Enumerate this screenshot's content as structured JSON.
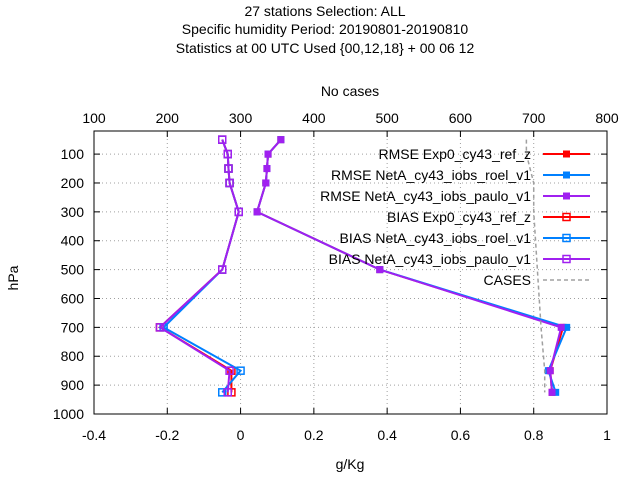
{
  "chart_data": {
    "type": "line",
    "title_lines": [
      "27 stations Selection: ALL",
      "Specific humidity  Period: 20190801-20190810",
      "Statistics at 00 UTC  Used {00,12,18} + 00 06 12"
    ],
    "xlabel": "g/Kg",
    "ylabel": "hPa",
    "x2label": "No cases",
    "xlim": [
      -0.4,
      1.0
    ],
    "ylim": [
      1000,
      20
    ],
    "x2lim": [
      100,
      800
    ],
    "xticks": [
      "-0.4",
      "-0.2",
      "0",
      "0.2",
      "0.4",
      "0.6",
      "0.8",
      "1"
    ],
    "xtick_values": [
      -0.4,
      -0.2,
      0,
      0.2,
      0.4,
      0.6,
      0.8,
      1.0
    ],
    "x2ticks": [
      "100",
      "200",
      "300",
      "400",
      "500",
      "600",
      "700",
      "800"
    ],
    "x2tick_values": [
      100,
      200,
      300,
      400,
      500,
      600,
      700,
      800
    ],
    "yticks": [
      "100",
      "200",
      "300",
      "400",
      "500",
      "600",
      "700",
      "800",
      "900",
      "1000"
    ],
    "ytick_values": [
      100,
      200,
      300,
      400,
      500,
      600,
      700,
      800,
      900,
      1000
    ],
    "grid": true,
    "legend_position": "top-right",
    "series": [
      {
        "name": "RMSE Exp0_cy43_ref_z",
        "color": "#ff0000",
        "marker": "filled-square",
        "points": [
          [
            0.11,
            50
          ],
          [
            0.075,
            100
          ],
          [
            0.072,
            150
          ],
          [
            0.069,
            200
          ],
          [
            0.045,
            300
          ],
          [
            0.38,
            500
          ],
          [
            0.88,
            700
          ],
          [
            0.845,
            850
          ],
          [
            0.85,
            925
          ]
        ]
      },
      {
        "name": "RMSE NetA_cy43_iobs_roel_v1",
        "color": "#0080ff",
        "marker": "filled-square",
        "points": [
          [
            0.11,
            50
          ],
          [
            0.075,
            100
          ],
          [
            0.072,
            150
          ],
          [
            0.069,
            200
          ],
          [
            0.045,
            300
          ],
          [
            0.38,
            500
          ],
          [
            0.89,
            700
          ],
          [
            0.84,
            850
          ],
          [
            0.86,
            925
          ]
        ]
      },
      {
        "name": "RMSE NetA_cy43_iobs_paulo_v1",
        "color": "#a020f0",
        "marker": "filled-square",
        "points": [
          [
            0.11,
            50
          ],
          [
            0.075,
            100
          ],
          [
            0.072,
            150
          ],
          [
            0.069,
            200
          ],
          [
            0.045,
            300
          ],
          [
            0.38,
            500
          ],
          [
            0.875,
            700
          ],
          [
            0.845,
            850
          ],
          [
            0.85,
            925
          ]
        ]
      },
      {
        "name": "BIAS Exp0_cy43_ref_z",
        "color": "#ff0000",
        "marker": "open-square",
        "points": [
          [
            -0.05,
            50
          ],
          [
            -0.035,
            100
          ],
          [
            -0.033,
            150
          ],
          [
            -0.03,
            200
          ],
          [
            -0.005,
            300
          ],
          [
            -0.05,
            500
          ],
          [
            -0.22,
            700
          ],
          [
            -0.025,
            850
          ],
          [
            -0.025,
            925
          ]
        ]
      },
      {
        "name": "BIAS NetA_cy43_iobs_roel_v1",
        "color": "#0080ff",
        "marker": "open-square",
        "points": [
          [
            -0.05,
            50
          ],
          [
            -0.035,
            100
          ],
          [
            -0.033,
            150
          ],
          [
            -0.03,
            200
          ],
          [
            -0.005,
            300
          ],
          [
            -0.05,
            500
          ],
          [
            -0.21,
            700
          ],
          [
            0.0,
            850
          ],
          [
            -0.05,
            925
          ]
        ]
      },
      {
        "name": "BIAS NetA_cy43_iobs_paulo_v1",
        "color": "#a020f0",
        "marker": "open-square",
        "points": [
          [
            -0.05,
            50
          ],
          [
            -0.035,
            100
          ],
          [
            -0.033,
            150
          ],
          [
            -0.03,
            200
          ],
          [
            -0.005,
            300
          ],
          [
            -0.05,
            500
          ],
          [
            -0.22,
            700
          ],
          [
            -0.03,
            850
          ],
          [
            -0.035,
            925
          ]
        ]
      },
      {
        "name": "CASES",
        "color": "#a0a0a0",
        "dash": true,
        "axis": "x2",
        "points": [
          [
            690,
            50
          ],
          [
            690,
            100
          ],
          [
            700,
            200
          ],
          [
            700,
            300
          ],
          [
            705,
            500
          ],
          [
            710,
            700
          ],
          [
            715,
            850
          ],
          [
            715,
            925
          ]
        ]
      }
    ]
  }
}
